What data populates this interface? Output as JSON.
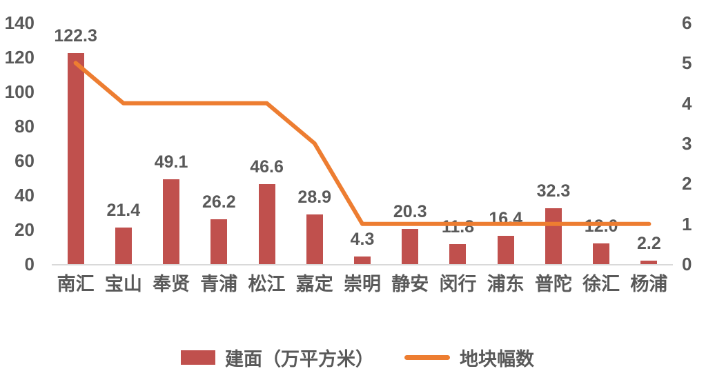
{
  "chart_data": {
    "type": "bar",
    "subtype": "combo-bar-line",
    "categories": [
      "南汇",
      "宝山",
      "奉贤",
      "青浦",
      "松江",
      "嘉定",
      "崇明",
      "静安",
      "闵行",
      "浦东",
      "普陀",
      "徐汇",
      "杨浦"
    ],
    "series": [
      {
        "name": "建面（万平方米）",
        "type": "bar",
        "axis": "left",
        "color": "#C0504D",
        "values": [
          122.3,
          21.4,
          49.1,
          26.2,
          46.6,
          28.9,
          4.3,
          20.3,
          11.8,
          16.4,
          32.3,
          12.0,
          2.2
        ],
        "data_labels": [
          "122.3",
          "21.4",
          "49.1",
          "26.2",
          "46.6",
          "28.9",
          "4.3",
          "20.3",
          "11.8",
          "16.4",
          "32.3",
          "12.0",
          "2.2"
        ]
      },
      {
        "name": "地块幅数",
        "type": "line",
        "axis": "right",
        "color": "#ED7D31",
        "values": [
          5,
          4,
          4,
          4,
          4,
          3,
          1,
          1,
          1,
          1,
          1,
          1,
          1
        ]
      }
    ],
    "left_axis": {
      "min": 0,
      "max": 140,
      "ticks": [
        0,
        20,
        40,
        60,
        80,
        100,
        120,
        140
      ]
    },
    "right_axis": {
      "min": 0,
      "max": 6,
      "ticks": [
        0,
        1,
        2,
        3,
        4,
        5,
        6
      ]
    },
    "grid": false,
    "legend_position": "bottom",
    "title": ""
  },
  "legend": {
    "bar_label": "建面（万平方米）",
    "line_label": "地块幅数"
  },
  "colors": {
    "bar": "#C0504D",
    "line": "#ED7D31",
    "text": "#595959",
    "axis_line": "#D9D9D9",
    "background": "#FFFFFF"
  }
}
